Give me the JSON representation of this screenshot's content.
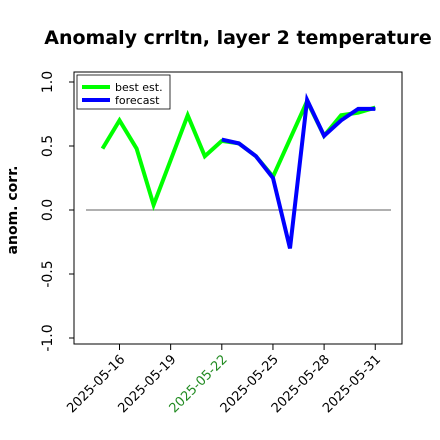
{
  "chart_data": {
    "type": "line",
    "title": "Anomaly crrltn, layer 2 temperature",
    "ylabel": "anom. corr.",
    "xlabel": "",
    "ylim": [
      -1.0,
      1.0
    ],
    "yticks": [
      "1.0",
      "0.5",
      "0.0",
      "-0.5",
      "-1.0"
    ],
    "ytick_values": [
      1.0,
      0.5,
      0.0,
      -0.5,
      -1.0
    ],
    "xticks": [
      "2025-05-16",
      "2025-05-19",
      "2025-05-22",
      "2025-05-25",
      "2025-05-28",
      "2025-05-31"
    ],
    "highlight_xtick": "2025-05-22",
    "highlight_color": "#228B22",
    "reference_line": 0.0,
    "legend_position": "top-left",
    "series": [
      {
        "name": "best est.",
        "color": "#00ff00",
        "x": [
          "2025-05-15",
          "2025-05-16",
          "2025-05-17",
          "2025-05-18",
          "2025-05-20",
          "2025-05-21",
          "2025-05-22",
          "2025-05-23",
          "2025-05-24",
          "2025-05-25",
          "2025-05-27",
          "2025-05-28",
          "2025-05-29",
          "2025-05-30",
          "2025-05-31"
        ],
        "values": [
          0.48,
          0.7,
          0.48,
          0.04,
          0.74,
          0.42,
          0.54,
          0.52,
          0.42,
          0.26,
          0.85,
          0.58,
          0.74,
          0.76,
          0.8
        ]
      },
      {
        "name": "forecast",
        "color": "#0000ff",
        "x": [
          "2025-05-22",
          "2025-05-23",
          "2025-05-24",
          "2025-05-25",
          "2025-05-26",
          "2025-05-27",
          "2025-05-28",
          "2025-05-29",
          "2025-05-30",
          "2025-05-31"
        ],
        "values": [
          0.55,
          0.52,
          0.42,
          0.25,
          -0.3,
          0.86,
          0.58,
          0.7,
          0.79,
          0.79
        ]
      }
    ]
  }
}
